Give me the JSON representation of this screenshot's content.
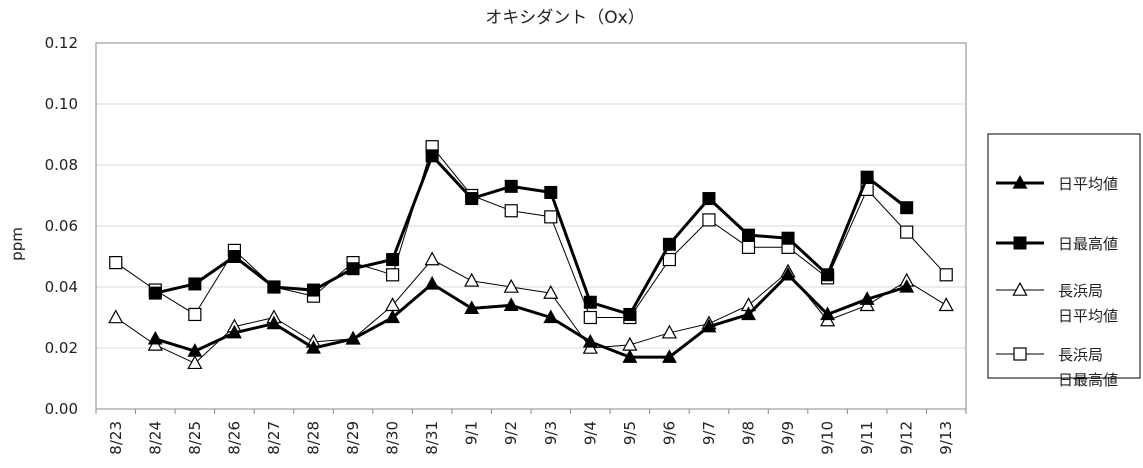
{
  "chart_data": {
    "type": "line",
    "title": "オキシダント（Ox）",
    "ylabel": "ppm",
    "xlabel": "",
    "ylim": [
      0,
      0.12
    ],
    "yticks": [
      "0.00",
      "0.02",
      "0.04",
      "0.06",
      "0.08",
      "0.10",
      "0.12"
    ],
    "grid": true,
    "legend_position": "right",
    "categories": [
      "8/23",
      "8/24",
      "8/25",
      "8/26",
      "8/27",
      "8/28",
      "8/29",
      "8/30",
      "8/31",
      "9/1",
      "9/2",
      "9/3",
      "9/4",
      "9/5",
      "9/6",
      "9/7",
      "9/8",
      "9/9",
      "9/10",
      "9/11",
      "9/12",
      "9/13"
    ],
    "series": [
      {
        "name": "日平均値",
        "marker": "filled-triangle",
        "line": "thick",
        "color": "#000000",
        "values": [
          null,
          0.023,
          0.019,
          0.025,
          0.028,
          0.02,
          0.023,
          0.03,
          0.041,
          0.033,
          0.034,
          0.03,
          0.022,
          0.017,
          0.017,
          0.027,
          0.031,
          0.044,
          0.031,
          0.036,
          0.04,
          null
        ]
      },
      {
        "name": "日最高値",
        "marker": "filled-square",
        "line": "thick",
        "color": "#000000",
        "values": [
          null,
          0.038,
          0.041,
          0.05,
          0.04,
          0.039,
          0.046,
          0.049,
          0.083,
          0.069,
          0.073,
          0.071,
          0.035,
          0.031,
          0.054,
          0.069,
          0.057,
          0.056,
          0.044,
          0.076,
          0.066,
          null
        ]
      },
      {
        "name": "長浜局 日平均値",
        "name_lines": [
          "長浜局",
          "日平均値"
        ],
        "marker": "open-triangle",
        "line": "thin",
        "color": "#000000",
        "values": [
          0.03,
          0.021,
          0.015,
          0.027,
          0.03,
          0.022,
          0.023,
          0.034,
          0.049,
          0.042,
          0.04,
          0.038,
          0.02,
          0.021,
          0.025,
          0.028,
          0.034,
          0.045,
          0.029,
          0.034,
          0.042,
          0.034
        ]
      },
      {
        "name": "長浜局 日最高値",
        "name_lines": [
          "長浜局",
          "日最高値"
        ],
        "marker": "open-square",
        "line": "thin",
        "color": "#000000",
        "values": [
          0.048,
          0.039,
          0.031,
          0.052,
          0.04,
          0.037,
          0.048,
          0.044,
          0.086,
          0.07,
          0.065,
          0.063,
          0.03,
          0.03,
          0.049,
          0.062,
          0.053,
          0.053,
          0.043,
          0.072,
          0.058,
          0.044
        ]
      }
    ]
  }
}
